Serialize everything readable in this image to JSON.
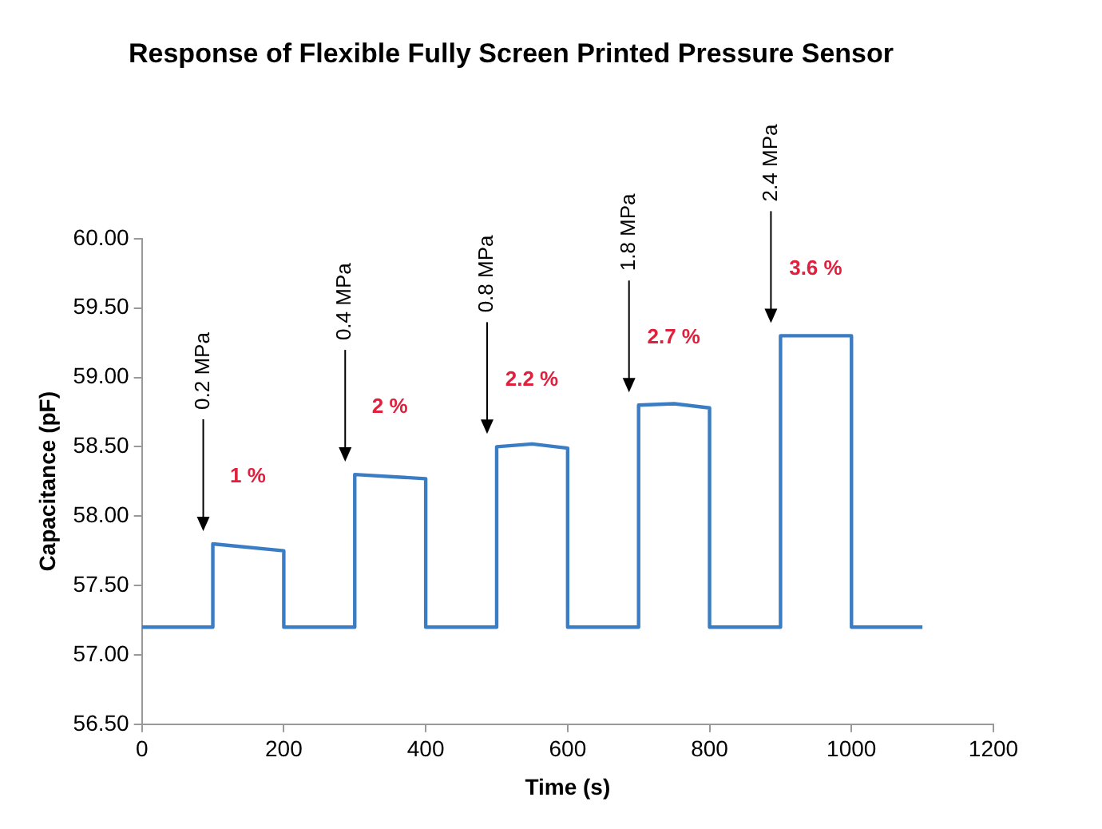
{
  "chart_data": {
    "type": "line",
    "title": "Response of Flexible Fully Screen Printed Pressure Sensor",
    "xlabel": "Time (s)",
    "ylabel": "Capacitance (pF)",
    "series": [
      {
        "color": "#3b7dc4",
        "x": [
          0,
          100,
          100,
          200,
          200,
          300,
          300,
          400,
          400,
          500,
          500,
          550,
          600,
          600,
          700,
          700,
          750,
          800,
          800,
          900,
          900,
          1000,
          1000,
          1100
        ],
        "values": [
          57.2,
          57.2,
          57.8,
          57.75,
          57.2,
          57.2,
          58.3,
          58.27,
          57.2,
          57.2,
          58.5,
          58.52,
          58.49,
          57.2,
          57.2,
          58.8,
          58.81,
          58.78,
          57.2,
          57.2,
          59.3,
          59.3,
          57.2,
          57.2
        ]
      }
    ],
    "xlim": [
      0,
      1200
    ],
    "xticks": [
      0,
      200,
      400,
      600,
      800,
      1000,
      1200
    ],
    "ylim": [
      56.5,
      60
    ],
    "yticks": [
      {
        "value": 56.5,
        "label": "56.50"
      },
      {
        "value": 57,
        "label": "57.00"
      },
      {
        "value": 57.5,
        "label": "57.50"
      },
      {
        "value": 58,
        "label": "58.00"
      },
      {
        "value": 58.5,
        "label": "58.50"
      },
      {
        "value": 59,
        "label": "59.00"
      },
      {
        "value": 59.5,
        "label": "59.50"
      },
      {
        "value": 60,
        "label": "60.00"
      }
    ],
    "grid": false,
    "legend": false,
    "marker": "none",
    "line_style": "solid",
    "annotations": [
      "0.2 MPa",
      "1 %",
      "0.4 MPa",
      "2 %",
      "0.8 MPa",
      "2.2 %",
      "1.8 MPa",
      "2.7 %",
      "2.4 MPa",
      "3.6 %"
    ]
  }
}
